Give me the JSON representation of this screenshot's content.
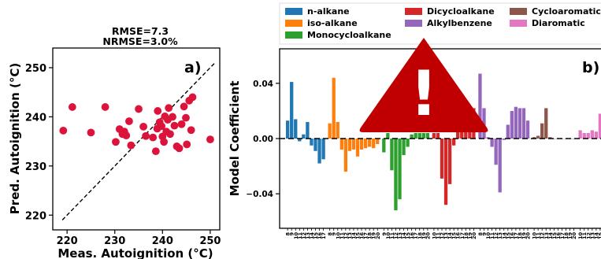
{
  "chart_data": [
    {
      "panel": "a)",
      "type": "scatter",
      "title": "RMSE=7.3",
      "subtitle": "NRMSE=3.0%",
      "xlabel": "Meas. Autoignition (°C)",
      "ylabel": "Pred. Autoignition (°C)",
      "xlim": [
        217,
        252
      ],
      "ylim": [
        217,
        254
      ],
      "xticks": [
        220,
        230,
        240,
        250
      ],
      "yticks": [
        220,
        230,
        240,
        250
      ],
      "parity_line": {
        "from": [
          219,
          219
        ],
        "to": [
          251,
          251
        ],
        "style": "dashed"
      },
      "marker_color": "#dc143c",
      "points": [
        [
          219.2,
          237.2
        ],
        [
          221.1,
          242.0
        ],
        [
          225.0,
          236.8
        ],
        [
          228.0,
          242.0
        ],
        [
          230.2,
          234.9
        ],
        [
          231.0,
          237.5
        ],
        [
          231.6,
          236.5
        ],
        [
          232.0,
          237.0
        ],
        [
          232.4,
          236.2
        ],
        [
          233.0,
          239.1
        ],
        [
          233.4,
          234.2
        ],
        [
          235.0,
          241.6
        ],
        [
          236.0,
          238.0
        ],
        [
          236.5,
          236.1
        ],
        [
          238.0,
          235.8
        ],
        [
          238.6,
          233.0
        ],
        [
          238.9,
          237.6
        ],
        [
          239.0,
          241.2
        ],
        [
          239.4,
          238.9
        ],
        [
          239.8,
          238.1
        ],
        [
          240.0,
          236.0
        ],
        [
          240.3,
          234.9
        ],
        [
          240.5,
          240.1
        ],
        [
          240.8,
          237.0
        ],
        [
          241.1,
          239.4
        ],
        [
          241.3,
          241.8
        ],
        [
          241.6,
          236.5
        ],
        [
          242.1,
          240.0
        ],
        [
          242.5,
          238.2
        ],
        [
          243.0,
          234.0
        ],
        [
          243.5,
          233.6
        ],
        [
          244.0,
          238.5
        ],
        [
          244.5,
          242.1
        ],
        [
          244.9,
          239.8
        ],
        [
          245.1,
          234.4
        ],
        [
          245.6,
          243.3
        ],
        [
          246.0,
          237.3
        ],
        [
          246.3,
          244.0
        ],
        [
          250.0,
          235.4
        ]
      ]
    },
    {
      "panel": "b)",
      "type": "bar",
      "ylabel": "Model Coefficient",
      "ylim": [
        -0.065,
        0.065
      ],
      "yticks": [
        -0.04,
        0.0,
        0.04
      ],
      "ytick_labels": [
        "−0.04",
        "0.00",
        "0.04"
      ],
      "zero_line": "dashed",
      "legend": {
        "placement": "top",
        "entries": [
          {
            "name": "n-alkane",
            "color": "#1f77b4"
          },
          {
            "name": "iso-alkane",
            "color": "#ff7f0e"
          },
          {
            "name": "Monocycloalkane",
            "color": "#2ca02c"
          },
          {
            "name": "Dicycloalkane",
            "color": "#d62728"
          },
          {
            "name": "Alkylbenzene",
            "color": "#9467bd"
          },
          {
            "name": "Cycloaromatic",
            "color": "#8c564b"
          },
          {
            "name": "Diaromatic",
            "color": "#e377c2"
          }
        ]
      },
      "x_tick_labels": [
        "8",
        "9",
        "10",
        "11",
        "12",
        "13",
        "14",
        "15",
        "16",
        "17",
        "8",
        "9",
        "10",
        "11",
        "12",
        "13",
        "14",
        "15",
        "16",
        "17",
        "18",
        "19",
        "20",
        "9",
        "10",
        "11",
        "12",
        "13",
        "14",
        "15",
        "16",
        "17",
        "18",
        "19",
        "20",
        "10",
        "11",
        "12",
        "13",
        "14",
        "15",
        "16",
        "17",
        "18",
        "19",
        "20",
        "8",
        "9",
        "10",
        "11",
        "12",
        "13",
        "14",
        "15",
        "16",
        "17",
        "18",
        "19",
        "20",
        "10",
        "11",
        "12",
        "13",
        "14",
        "15",
        "16",
        "17",
        "18",
        "19",
        "20",
        "10",
        "11",
        "12",
        "13",
        "14",
        "15",
        "16",
        "17",
        "18",
        "19",
        "20"
      ],
      "series": [
        {
          "name": "n-alkane",
          "color": "#1f77b4",
          "values": [
            0.013,
            0.041,
            0.014,
            -0.002,
            0.003,
            0.012,
            -0.005,
            -0.009,
            -0.018,
            -0.015
          ]
        },
        {
          "name": "iso-alkane",
          "color": "#ff7f0e",
          "values": [
            0.011,
            0.044,
            0.012,
            -0.008,
            -0.024,
            -0.009,
            -0.008,
            -0.013,
            -0.008,
            -0.007,
            -0.006,
            -0.007,
            -0.004
          ]
        },
        {
          "name": "Monocycloalkane",
          "color": "#2ca02c",
          "values": [
            -0.01,
            0.004,
            -0.023,
            -0.052,
            -0.044,
            -0.012,
            -0.006,
            0.003,
            0.004,
            0.004,
            0.004,
            0.004
          ]
        },
        {
          "name": "Dicycloalkane",
          "color": "#d62728",
          "values": [
            0.004,
            0.004,
            -0.029,
            -0.048,
            -0.033,
            -0.005,
            0.01,
            0.014,
            0.019,
            0.018,
            0.022
          ]
        },
        {
          "name": "Alkylbenzene",
          "color": "#9467bd",
          "values": [
            0.047,
            0.022,
            0.001,
            -0.006,
            -0.019,
            -0.039,
            -0.001,
            0.01,
            0.02,
            0.023,
            0.022,
            0.022,
            0.013
          ]
        },
        {
          "name": "Cycloaromatic",
          "color": "#8c564b",
          "values": [
            0.001,
            0.002,
            0.011,
            0.022,
            0.001,
            0.0,
            0.0,
            0.0,
            0.0,
            0.0,
            0.0
          ]
        },
        {
          "name": "Diaromatic",
          "color": "#e377c2",
          "values": [
            0.006,
            0.004,
            0.004,
            0.006,
            0.005,
            0.018,
            0.0,
            0.0,
            0.0,
            0.0,
            0.0
          ]
        }
      ]
    }
  ],
  "overlay": {
    "icon": "warning-triangle-icon",
    "color": "#c00000",
    "glyph": "!"
  }
}
